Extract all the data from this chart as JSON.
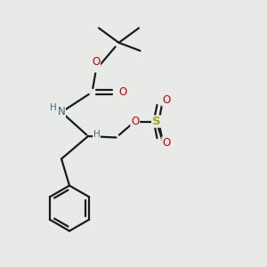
{
  "background_color": "#e8eae8",
  "bond_color": "#1a1a1a",
  "O_color": "#cc0000",
  "N_color": "#336677",
  "S_color": "#aaaa00",
  "H_color": "#556677",
  "figsize": [
    3.0,
    3.0
  ],
  "dpi": 100,
  "xlim": [
    0,
    10
  ],
  "ylim": [
    0,
    10
  ]
}
